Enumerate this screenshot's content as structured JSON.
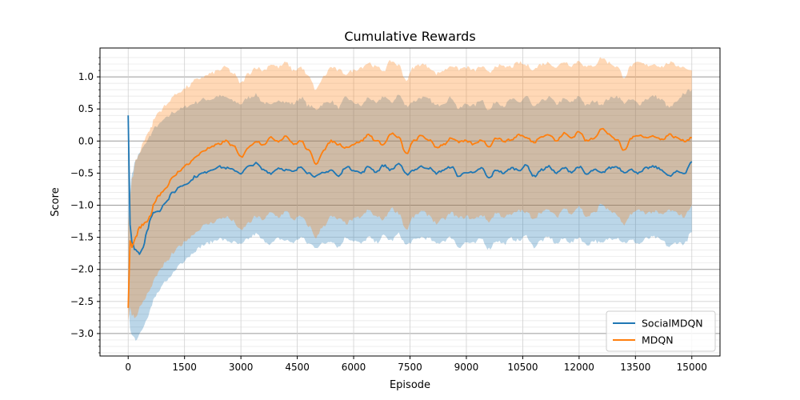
{
  "chart_data": {
    "type": "line",
    "title": "Cumulative Rewards",
    "xlabel": "Episode",
    "ylabel": "Score",
    "xlim": [
      -750,
      15750
    ],
    "ylim": [
      -3.35,
      1.45
    ],
    "xticks": [
      0,
      1500,
      3000,
      4500,
      6000,
      7500,
      9000,
      10500,
      12000,
      13500,
      15000
    ],
    "xtick_labels": [
      "0",
      "1500",
      "3000",
      "4500",
      "6000",
      "7500",
      "9000",
      "10500",
      "12000",
      "13500",
      "15000"
    ],
    "yticks": [
      -3.0,
      -2.5,
      -2.0,
      -1.5,
      -1.0,
      -0.5,
      0.0,
      0.5,
      1.0
    ],
    "ytick_labels": [
      "−3.0",
      "−2.5",
      "−2.0",
      "−1.5",
      "−1.0",
      "−0.5",
      "0.0",
      "0.5",
      "1.0"
    ],
    "grid": true,
    "legend_position": "bottom-right",
    "series": [
      {
        "name": "SocialMDQN",
        "color": "#1f77b4",
        "x": [
          0,
          50,
          100,
          200,
          300,
          400,
          500,
          600,
          700,
          800,
          1000,
          1200,
          1400,
          1600,
          1800,
          2000,
          2200,
          2400,
          2600,
          2800,
          3000,
          3200,
          3400,
          3600,
          3800,
          4000,
          4200,
          4400,
          4600,
          4800,
          5000,
          5200,
          5400,
          5600,
          5800,
          6000,
          6200,
          6400,
          6600,
          6800,
          7000,
          7200,
          7400,
          7600,
          7800,
          8000,
          8200,
          8400,
          8600,
          8800,
          9000,
          9200,
          9400,
          9600,
          9800,
          10000,
          10200,
          10400,
          10600,
          10800,
          11000,
          11200,
          11400,
          11600,
          11800,
          12000,
          12200,
          12400,
          12600,
          12800,
          13000,
          13200,
          13400,
          13600,
          13800,
          14000,
          14200,
          14400,
          14600,
          14800,
          15000
        ],
        "mean": [
          0.4,
          -1.3,
          -1.6,
          -1.7,
          -1.75,
          -1.65,
          -1.4,
          -1.2,
          -1.1,
          -1.1,
          -0.95,
          -0.8,
          -0.7,
          -0.65,
          -0.55,
          -0.5,
          -0.45,
          -0.4,
          -0.42,
          -0.45,
          -0.5,
          -0.4,
          -0.35,
          -0.45,
          -0.5,
          -0.42,
          -0.45,
          -0.48,
          -0.4,
          -0.5,
          -0.55,
          -0.5,
          -0.45,
          -0.55,
          -0.4,
          -0.45,
          -0.5,
          -0.4,
          -0.48,
          -0.38,
          -0.45,
          -0.35,
          -0.52,
          -0.45,
          -0.4,
          -0.42,
          -0.5,
          -0.45,
          -0.4,
          -0.55,
          -0.48,
          -0.5,
          -0.42,
          -0.58,
          -0.45,
          -0.5,
          -0.42,
          -0.45,
          -0.38,
          -0.55,
          -0.45,
          -0.4,
          -0.5,
          -0.42,
          -0.48,
          -0.4,
          -0.52,
          -0.45,
          -0.5,
          -0.42,
          -0.4,
          -0.48,
          -0.45,
          -0.5,
          -0.42,
          -0.4,
          -0.45,
          -0.55,
          -0.48,
          -0.5,
          -0.32
        ],
        "upper": [
          0.5,
          -0.8,
          -0.5,
          -0.3,
          -0.2,
          -0.1,
          0.0,
          0.1,
          0.2,
          0.25,
          0.35,
          0.45,
          0.5,
          0.55,
          0.6,
          0.65,
          0.65,
          0.7,
          0.68,
          0.62,
          0.58,
          0.68,
          0.72,
          0.6,
          0.55,
          0.65,
          0.6,
          0.58,
          0.68,
          0.55,
          0.5,
          0.58,
          0.62,
          0.52,
          0.68,
          0.6,
          0.55,
          0.68,
          0.58,
          0.7,
          0.6,
          0.72,
          0.55,
          0.62,
          0.68,
          0.65,
          0.55,
          0.6,
          0.68,
          0.5,
          0.58,
          0.55,
          0.65,
          0.48,
          0.62,
          0.55,
          0.65,
          0.6,
          0.7,
          0.52,
          0.62,
          0.68,
          0.58,
          0.65,
          0.6,
          0.7,
          0.55,
          0.62,
          0.58,
          0.66,
          0.7,
          0.6,
          0.64,
          0.58,
          0.66,
          0.7,
          0.64,
          0.52,
          0.6,
          0.75,
          0.8
        ],
        "lower": [
          -2.5,
          -2.9,
          -3.05,
          -3.1,
          -3.0,
          -2.9,
          -2.75,
          -2.6,
          -2.45,
          -2.35,
          -2.2,
          -2.05,
          -1.9,
          -1.8,
          -1.7,
          -1.62,
          -1.58,
          -1.52,
          -1.55,
          -1.58,
          -1.62,
          -1.52,
          -1.45,
          -1.55,
          -1.6,
          -1.52,
          -1.55,
          -1.58,
          -1.5,
          -1.6,
          -1.65,
          -1.6,
          -1.55,
          -1.65,
          -1.5,
          -1.55,
          -1.6,
          -1.5,
          -1.58,
          -1.48,
          -1.55,
          -1.45,
          -1.62,
          -1.55,
          -1.5,
          -1.52,
          -1.6,
          -1.55,
          -1.5,
          -1.65,
          -1.58,
          -1.6,
          -1.52,
          -1.68,
          -1.55,
          -1.6,
          -1.52,
          -1.55,
          -1.48,
          -1.65,
          -1.55,
          -1.5,
          -1.6,
          -1.52,
          -1.58,
          -1.5,
          -1.62,
          -1.55,
          -1.6,
          -1.52,
          -1.5,
          -1.58,
          -1.55,
          -1.6,
          -1.52,
          -1.5,
          -1.55,
          -1.65,
          -1.58,
          -1.6,
          -1.42
        ]
      },
      {
        "name": "MDQN",
        "color": "#ff7f0e",
        "x": [
          0,
          50,
          100,
          200,
          300,
          400,
          500,
          600,
          700,
          800,
          1000,
          1200,
          1400,
          1600,
          1800,
          2000,
          2200,
          2400,
          2600,
          2800,
          3000,
          3200,
          3400,
          3600,
          3800,
          4000,
          4200,
          4400,
          4600,
          4800,
          5000,
          5200,
          5400,
          5600,
          5800,
          6000,
          6200,
          6400,
          6600,
          6800,
          7000,
          7200,
          7400,
          7600,
          7800,
          8000,
          8200,
          8400,
          8600,
          8800,
          9000,
          9200,
          9400,
          9600,
          9800,
          10000,
          10200,
          10400,
          10600,
          10800,
          11000,
          11200,
          11400,
          11600,
          11800,
          12000,
          12200,
          12400,
          12600,
          12800,
          13000,
          13200,
          13400,
          13600,
          13800,
          14000,
          14200,
          14400,
          14600,
          14800,
          15000
        ],
        "mean": [
          -2.6,
          -1.55,
          -1.65,
          -1.5,
          -1.35,
          -1.3,
          -1.25,
          -1.15,
          -0.95,
          -0.85,
          -0.75,
          -0.55,
          -0.45,
          -0.35,
          -0.25,
          -0.15,
          -0.1,
          -0.05,
          0.0,
          -0.08,
          -0.25,
          -0.1,
          0.0,
          -0.05,
          0.05,
          0.0,
          0.08,
          -0.05,
          0.0,
          -0.15,
          -0.35,
          -0.15,
          0.0,
          -0.05,
          -0.1,
          -0.05,
          0.0,
          0.1,
          0.0,
          -0.05,
          0.12,
          0.05,
          -0.2,
          0.0,
          0.08,
          0.02,
          -0.1,
          -0.05,
          0.05,
          -0.02,
          0.0,
          -0.05,
          0.02,
          -0.08,
          0.05,
          0.0,
          0.02,
          0.1,
          0.05,
          -0.02,
          0.08,
          0.1,
          0.0,
          0.12,
          0.05,
          0.15,
          0.0,
          0.05,
          0.2,
          0.1,
          0.02,
          -0.15,
          0.05,
          0.1,
          0.05,
          0.08,
          0.02,
          0.1,
          0.05,
          0.0,
          0.05
        ],
        "upper": [
          -1.3,
          -0.9,
          -0.6,
          -0.3,
          -0.2,
          0.0,
          0.1,
          0.2,
          0.35,
          0.45,
          0.55,
          0.7,
          0.78,
          0.85,
          0.95,
          1.0,
          1.05,
          1.1,
          1.15,
          1.05,
          0.9,
          1.05,
          1.15,
          1.1,
          1.2,
          1.15,
          1.22,
          1.1,
          1.15,
          1.0,
          0.8,
          1.0,
          1.15,
          1.1,
          1.05,
          1.1,
          1.15,
          1.22,
          1.15,
          1.1,
          1.25,
          1.18,
          0.95,
          1.15,
          1.2,
          1.16,
          1.05,
          1.1,
          1.18,
          1.12,
          1.15,
          1.1,
          1.16,
          1.06,
          1.18,
          1.15,
          1.16,
          1.22,
          1.18,
          1.12,
          1.2,
          1.22,
          1.15,
          1.24,
          1.18,
          1.25,
          1.15,
          1.18,
          1.3,
          1.22,
          1.16,
          1.0,
          1.18,
          1.22,
          1.18,
          1.2,
          1.16,
          1.22,
          1.18,
          1.15,
          1.1
        ],
        "lower": [
          -2.8,
          -2.6,
          -2.7,
          -2.75,
          -2.6,
          -2.5,
          -2.4,
          -2.3,
          -2.15,
          -2.05,
          -1.9,
          -1.75,
          -1.62,
          -1.52,
          -1.42,
          -1.32,
          -1.28,
          -1.22,
          -1.18,
          -1.25,
          -1.4,
          -1.28,
          -1.18,
          -1.22,
          -1.12,
          -1.18,
          -1.1,
          -1.22,
          -1.18,
          -1.32,
          -1.5,
          -1.32,
          -1.18,
          -1.22,
          -1.28,
          -1.22,
          -1.18,
          -1.08,
          -1.18,
          -1.22,
          -1.05,
          -1.12,
          -1.38,
          -1.18,
          -1.1,
          -1.15,
          -1.28,
          -1.22,
          -1.12,
          -1.2,
          -1.18,
          -1.22,
          -1.15,
          -1.25,
          -1.12,
          -1.18,
          -1.15,
          -1.08,
          -1.12,
          -1.2,
          -1.1,
          -1.08,
          -1.18,
          -1.05,
          -1.12,
          -1.02,
          -1.18,
          -1.12,
          -0.98,
          -1.08,
          -1.15,
          -1.32,
          -1.12,
          -1.08,
          -1.12,
          -1.1,
          -1.15,
          -1.08,
          -1.12,
          -1.18,
          -1.0
        ]
      }
    ]
  }
}
